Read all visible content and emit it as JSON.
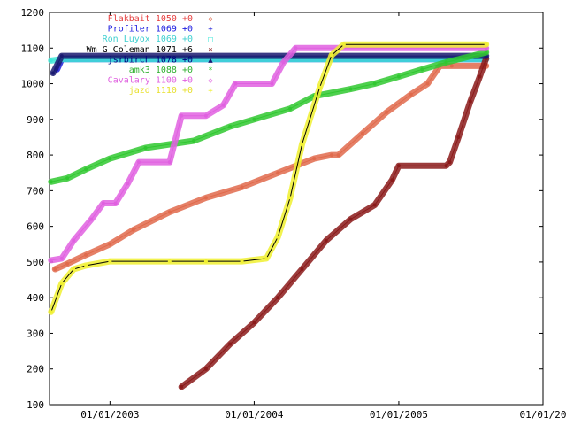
{
  "chart_data": {
    "type": "line",
    "title": "",
    "xlabel": "",
    "ylabel": "",
    "xlim": [
      "2002-08-01",
      "2006-01-01"
    ],
    "ylim": [
      100,
      1200
    ],
    "grid": false,
    "legend_position": "top-right",
    "y_ticks": [
      100,
      200,
      300,
      400,
      500,
      600,
      700,
      800,
      900,
      1000,
      1100,
      1200
    ],
    "x_ticks": [
      {
        "date": "2003-01-01",
        "label": "01/01/2003"
      },
      {
        "date": "2004-01-01",
        "label": "01/01/2004"
      },
      {
        "date": "2005-01-01",
        "label": "01/01/2005"
      },
      {
        "date": "2006-01-01",
        "label": "01/01/20"
      }
    ],
    "series": [
      {
        "name": "Flakbait",
        "legend": "Flakbait 1050 +0",
        "glyph": "◇",
        "color": "#e06a4c",
        "text_color": "#e64040",
        "points": [
          [
            "2002-08-15",
            480
          ],
          [
            "2002-09-15",
            495
          ],
          [
            "2002-11-01",
            520
          ],
          [
            "2003-01-01",
            550
          ],
          [
            "2003-03-01",
            590
          ],
          [
            "2003-06-01",
            640
          ],
          [
            "2003-09-01",
            680
          ],
          [
            "2003-12-01",
            710
          ],
          [
            "2004-03-01",
            750
          ],
          [
            "2004-06-01",
            790
          ],
          [
            "2004-07-15",
            800
          ],
          [
            "2004-08-01",
            800
          ],
          [
            "2004-10-01",
            860
          ],
          [
            "2004-12-01",
            920
          ],
          [
            "2005-02-01",
            970
          ],
          [
            "2005-03-15",
            1000
          ],
          [
            "2005-04-15",
            1050
          ],
          [
            "2005-05-15",
            1050
          ],
          [
            "2005-08-10",
            1050
          ]
        ]
      },
      {
        "name": "Profiler",
        "legend": "Profiler 1069 +0",
        "glyph": "+",
        "color": "#1e1ed8",
        "text_color": "#2020e0",
        "points": [
          [
            "2002-08-20",
            1040
          ],
          [
            "2002-09-01",
            1069
          ],
          [
            "2005-08-10",
            1069
          ]
        ]
      },
      {
        "name": "Ron Luyox",
        "legend": "Ron Luyox 1069 +0",
        "glyph": "□",
        "color": "#40e8d8",
        "text_color": "#40d0d0",
        "points": [
          [
            "2002-08-05",
            1065
          ],
          [
            "2002-09-01",
            1069
          ],
          [
            "2005-08-10",
            1069
          ]
        ]
      },
      {
        "name": "Wm G Coleman",
        "legend": "Wm G Coleman 1071 +6",
        "glyph": "×",
        "color": "#8b1a1a",
        "text_color": "#000000",
        "points": [
          [
            "2003-07-01",
            150
          ],
          [
            "2003-09-01",
            200
          ],
          [
            "2003-11-01",
            270
          ],
          [
            "2004-01-01",
            330
          ],
          [
            "2004-03-01",
            400
          ],
          [
            "2004-05-01",
            480
          ],
          [
            "2004-07-01",
            560
          ],
          [
            "2004-09-01",
            620
          ],
          [
            "2004-11-01",
            660
          ],
          [
            "2004-12-15",
            730
          ],
          [
            "2005-01-01",
            770
          ],
          [
            "2005-05-01",
            770
          ],
          [
            "2005-05-10",
            780
          ],
          [
            "2005-06-01",
            850
          ],
          [
            "2005-07-01",
            950
          ],
          [
            "2005-07-25",
            1020
          ],
          [
            "2005-08-10",
            1071
          ]
        ]
      },
      {
        "name": "jsrbirch",
        "legend": "jsrbirch 1078 +0",
        "glyph": "▲",
        "color": "#1a1a70",
        "text_color": "#000080",
        "points": [
          [
            "2002-08-10",
            1030
          ],
          [
            "2002-09-01",
            1078
          ],
          [
            "2005-08-10",
            1078
          ]
        ]
      },
      {
        "name": "amk3",
        "legend": "amk3 1088 +0",
        "glyph": "*",
        "color": "#30c830",
        "text_color": "#30b030",
        "points": [
          [
            "2002-08-05",
            725
          ],
          [
            "2002-09-15",
            735
          ],
          [
            "2002-11-01",
            760
          ],
          [
            "2003-01-01",
            790
          ],
          [
            "2003-04-01",
            820
          ],
          [
            "2003-08-01",
            840
          ],
          [
            "2003-11-01",
            880
          ],
          [
            "2004-01-01",
            900
          ],
          [
            "2004-04-01",
            930
          ],
          [
            "2004-06-01",
            965
          ],
          [
            "2004-09-01",
            985
          ],
          [
            "2004-11-01",
            1000
          ],
          [
            "2005-01-01",
            1020
          ],
          [
            "2005-03-01",
            1040
          ],
          [
            "2005-05-01",
            1060
          ],
          [
            "2005-08-10",
            1088
          ]
        ]
      },
      {
        "name": "Cavalary",
        "legend": "Cavalary 1100 +0",
        "glyph": "◇",
        "color": "#e060e0",
        "text_color": "#e060e0",
        "points": [
          [
            "2002-08-05",
            505
          ],
          [
            "2002-09-01",
            510
          ],
          [
            "2002-10-01",
            560
          ],
          [
            "2002-11-15",
            620
          ],
          [
            "2002-12-15",
            665
          ],
          [
            "2003-01-15",
            665
          ],
          [
            "2003-02-15",
            720
          ],
          [
            "2003-03-15",
            780
          ],
          [
            "2003-06-01",
            780
          ],
          [
            "2003-07-01",
            910
          ],
          [
            "2003-09-01",
            910
          ],
          [
            "2003-10-15",
            940
          ],
          [
            "2003-11-15",
            1000
          ],
          [
            "2004-02-15",
            1000
          ],
          [
            "2004-03-15",
            1060
          ],
          [
            "2004-04-15",
            1100
          ],
          [
            "2005-08-10",
            1100
          ]
        ]
      },
      {
        "name": "jazd",
        "legend": "jazd 1110 +0",
        "glyph": "+",
        "color": "#f0f030",
        "text_color": "#e8e030",
        "points": [
          [
            "2002-08-05",
            360
          ],
          [
            "2002-09-01",
            440
          ],
          [
            "2002-10-01",
            480
          ],
          [
            "2002-11-01",
            490
          ],
          [
            "2003-01-01",
            502
          ],
          [
            "2003-06-01",
            502
          ],
          [
            "2003-09-01",
            502
          ],
          [
            "2003-12-01",
            502
          ],
          [
            "2004-02-01",
            510
          ],
          [
            "2004-03-01",
            570
          ],
          [
            "2004-04-01",
            680
          ],
          [
            "2004-05-01",
            830
          ],
          [
            "2004-06-15",
            990
          ],
          [
            "2004-07-15",
            1080
          ],
          [
            "2004-08-15",
            1110
          ],
          [
            "2005-08-10",
            1110
          ]
        ]
      }
    ]
  }
}
